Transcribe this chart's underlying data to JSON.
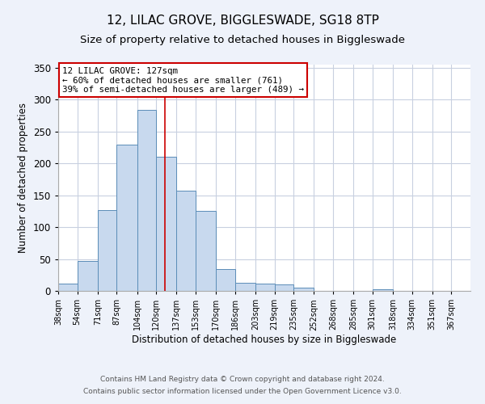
{
  "title": "12, LILAC GROVE, BIGGLESWADE, SG18 8TP",
  "subtitle": "Size of property relative to detached houses in Biggleswade",
  "xlabel": "Distribution of detached houses by size in Biggleswade",
  "ylabel": "Number of detached properties",
  "footnote1": "Contains HM Land Registry data © Crown copyright and database right 2024.",
  "footnote2": "Contains public sector information licensed under the Open Government Licence v3.0.",
  "bin_labels": [
    "38sqm",
    "54sqm",
    "71sqm",
    "87sqm",
    "104sqm",
    "120sqm",
    "137sqm",
    "153sqm",
    "170sqm",
    "186sqm",
    "203sqm",
    "219sqm",
    "235sqm",
    "252sqm",
    "268sqm",
    "285sqm",
    "301sqm",
    "318sqm",
    "334sqm",
    "351sqm",
    "367sqm"
  ],
  "bin_edges": [
    38,
    54,
    71,
    87,
    104,
    120,
    137,
    153,
    170,
    186,
    203,
    219,
    235,
    252,
    268,
    285,
    301,
    318,
    334,
    351,
    367
  ],
  "bar_heights": [
    11,
    47,
    127,
    230,
    284,
    210,
    157,
    126,
    34,
    13,
    12,
    10,
    5,
    0,
    0,
    0,
    2,
    0,
    0,
    0
  ],
  "bar_color": "#c8d9ee",
  "bar_edge_color": "#5b8db8",
  "vline_x": 127,
  "vline_color": "#cc0000",
  "annotation_line1": "12 LILAC GROVE: 127sqm",
  "annotation_line2": "← 60% of detached houses are smaller (761)",
  "annotation_line3": "39% of semi-detached houses are larger (489) →",
  "annotation_box_color": "#ffffff",
  "annotation_box_edge": "#cc0000",
  "ylim": [
    0,
    355
  ],
  "yticks": [
    0,
    50,
    100,
    150,
    200,
    250,
    300,
    350
  ],
  "background_color": "#eef2fa",
  "plot_background": "#ffffff",
  "grid_color": "#c8d0e0",
  "title_fontsize": 11,
  "subtitle_fontsize": 9.5
}
